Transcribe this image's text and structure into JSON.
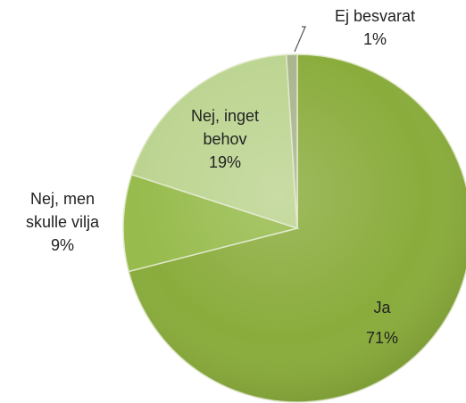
{
  "chart_data": {
    "type": "pie",
    "categories": [
      "Ja",
      "Nej, men skulle vilja",
      "Nej, inget behov",
      "Ej besvarat"
    ],
    "values": [
      71,
      9,
      19,
      1
    ],
    "value_labels": [
      "71%",
      "9%",
      "19%",
      "1%"
    ],
    "colors": [
      "#8aac3c",
      "#97bb4c",
      "#bcd490",
      "#a9b48e"
    ]
  }
}
